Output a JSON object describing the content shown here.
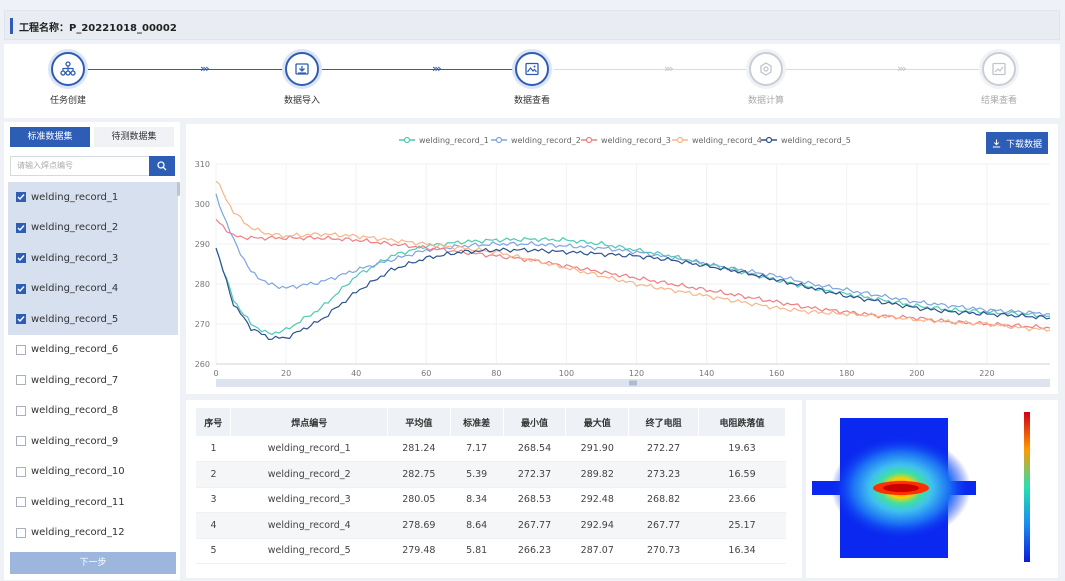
{
  "project": {
    "title": "工程名称：P_20221018_00002"
  },
  "steps": [
    {
      "label": "任务创建",
      "state": "done",
      "icon": "network-icon"
    },
    {
      "label": "数据导入",
      "state": "done",
      "icon": "import-icon"
    },
    {
      "label": "数据查看",
      "state": "active",
      "icon": "image-icon"
    },
    {
      "label": "数据计算",
      "state": "inactive",
      "icon": "compute-icon"
    },
    {
      "label": "结果查看",
      "state": "inactive",
      "icon": "result-icon"
    }
  ],
  "sidebar": {
    "tab_active": "标准数据集",
    "tab_other": "待测数据集",
    "search_placeholder": "请输入焊点编号",
    "items": [
      {
        "label": "welding_record_1",
        "checked": true
      },
      {
        "label": "welding_record_2",
        "checked": true
      },
      {
        "label": "welding_record_3",
        "checked": true
      },
      {
        "label": "welding_record_4",
        "checked": true
      },
      {
        "label": "welding_record_5",
        "checked": true
      },
      {
        "label": "welding_record_6",
        "checked": false
      },
      {
        "label": "welding_record_7",
        "checked": false
      },
      {
        "label": "welding_record_8",
        "checked": false
      },
      {
        "label": "welding_record_9",
        "checked": false
      },
      {
        "label": "welding_record_10",
        "checked": false
      },
      {
        "label": "welding_record_11",
        "checked": false
      },
      {
        "label": "welding_record_12",
        "checked": false
      }
    ],
    "next_label": "下一步"
  },
  "download_label": "下载数据",
  "chart_data": {
    "type": "line",
    "xlim": [
      0,
      238
    ],
    "ylim": [
      260,
      310
    ],
    "xticks": [
      0,
      20,
      40,
      60,
      80,
      100,
      120,
      140,
      160,
      180,
      200,
      220
    ],
    "yticks": [
      260,
      270,
      280,
      290,
      300,
      310
    ],
    "legend_position": "top-center",
    "series": [
      {
        "name": "welding_record_1",
        "color": "#4fc9b0",
        "points": [
          [
            0,
            289
          ],
          [
            5,
            276
          ],
          [
            10,
            270
          ],
          [
            15,
            267.5
          ],
          [
            20,
            268.5
          ],
          [
            30,
            274
          ],
          [
            40,
            282
          ],
          [
            50,
            287
          ],
          [
            60,
            289.5
          ],
          [
            70,
            290.5
          ],
          [
            80,
            291
          ],
          [
            90,
            291.2
          ],
          [
            100,
            291
          ],
          [
            110,
            290
          ],
          [
            120,
            288.5
          ],
          [
            130,
            287
          ],
          [
            140,
            285
          ],
          [
            150,
            283
          ],
          [
            160,
            281
          ],
          [
            170,
            279
          ],
          [
            180,
            277.5
          ],
          [
            190,
            276
          ],
          [
            200,
            274.5
          ],
          [
            210,
            273.5
          ],
          [
            220,
            273
          ],
          [
            230,
            272.5
          ],
          [
            238,
            272
          ]
        ]
      },
      {
        "name": "welding_record_2",
        "color": "#7fa4e0",
        "points": [
          [
            0,
            302
          ],
          [
            5,
            291
          ],
          [
            10,
            283
          ],
          [
            15,
            280
          ],
          [
            20,
            279
          ],
          [
            30,
            280.5
          ],
          [
            40,
            283.5
          ],
          [
            50,
            286
          ],
          [
            60,
            288.5
          ],
          [
            70,
            289.5
          ],
          [
            80,
            290
          ],
          [
            90,
            290
          ],
          [
            100,
            289.5
          ],
          [
            110,
            289
          ],
          [
            120,
            288
          ],
          [
            130,
            286.5
          ],
          [
            140,
            285
          ],
          [
            150,
            283.5
          ],
          [
            160,
            282
          ],
          [
            170,
            280
          ],
          [
            180,
            278.5
          ],
          [
            190,
            277
          ],
          [
            200,
            275.5
          ],
          [
            210,
            274.5
          ],
          [
            220,
            273.5
          ],
          [
            230,
            273
          ],
          [
            238,
            272.5
          ]
        ]
      },
      {
        "name": "welding_record_3",
        "color": "#ee7f83",
        "points": [
          [
            0,
            296
          ],
          [
            5,
            292
          ],
          [
            10,
            291.5
          ],
          [
            20,
            291.5
          ],
          [
            30,
            291.5
          ],
          [
            40,
            291
          ],
          [
            50,
            290
          ],
          [
            60,
            289
          ],
          [
            70,
            288
          ],
          [
            80,
            287
          ],
          [
            90,
            286
          ],
          [
            100,
            284.5
          ],
          [
            110,
            283
          ],
          [
            120,
            281.5
          ],
          [
            130,
            280
          ],
          [
            140,
            278.5
          ],
          [
            150,
            277
          ],
          [
            160,
            275.5
          ],
          [
            170,
            274
          ],
          [
            180,
            273
          ],
          [
            190,
            272
          ],
          [
            200,
            271.5
          ],
          [
            210,
            270.5
          ],
          [
            220,
            270
          ],
          [
            230,
            269.5
          ],
          [
            238,
            269
          ]
        ]
      },
      {
        "name": "welding_record_4",
        "color": "#f6b58a",
        "points": [
          [
            0,
            306
          ],
          [
            5,
            298
          ],
          [
            10,
            294
          ],
          [
            15,
            292.5
          ],
          [
            20,
            292
          ],
          [
            30,
            292.5
          ],
          [
            40,
            292
          ],
          [
            50,
            291
          ],
          [
            60,
            290
          ],
          [
            70,
            289
          ],
          [
            80,
            288
          ],
          [
            90,
            286
          ],
          [
            100,
            284
          ],
          [
            110,
            282
          ],
          [
            120,
            280
          ],
          [
            130,
            278.5
          ],
          [
            140,
            277
          ],
          [
            150,
            275.5
          ],
          [
            160,
            274
          ],
          [
            170,
            273
          ],
          [
            180,
            272.5
          ],
          [
            190,
            272
          ],
          [
            200,
            271
          ],
          [
            210,
            270.5
          ],
          [
            220,
            270
          ],
          [
            230,
            269
          ],
          [
            238,
            268.5
          ]
        ]
      },
      {
        "name": "welding_record_5",
        "color": "#2e528f",
        "points": [
          [
            0,
            289
          ],
          [
            5,
            275
          ],
          [
            10,
            269
          ],
          [
            15,
            266.5
          ],
          [
            20,
            266.5
          ],
          [
            30,
            271
          ],
          [
            40,
            278
          ],
          [
            50,
            283.5
          ],
          [
            60,
            286.5
          ],
          [
            70,
            288
          ],
          [
            80,
            288.5
          ],
          [
            90,
            288.5
          ],
          [
            100,
            288
          ],
          [
            110,
            287.5
          ],
          [
            120,
            287
          ],
          [
            130,
            286
          ],
          [
            140,
            284.5
          ],
          [
            150,
            283
          ],
          [
            160,
            281
          ],
          [
            170,
            279
          ],
          [
            180,
            277
          ],
          [
            190,
            275.5
          ],
          [
            200,
            274
          ],
          [
            210,
            273
          ],
          [
            220,
            272.5
          ],
          [
            230,
            272
          ],
          [
            238,
            271.5
          ]
        ]
      }
    ]
  },
  "table": {
    "headers": [
      "序号",
      "焊点编号",
      "平均值",
      "标准差",
      "最小值",
      "最大值",
      "终了电阻",
      "电阻跌落值"
    ],
    "rows": [
      [
        "1",
        "welding_record_1",
        "281.24",
        "7.17",
        "268.54",
        "291.90",
        "272.27",
        "19.63"
      ],
      [
        "2",
        "welding_record_2",
        "282.75",
        "5.39",
        "272.37",
        "289.82",
        "273.23",
        "16.59"
      ],
      [
        "3",
        "welding_record_3",
        "280.05",
        "8.34",
        "268.53",
        "292.48",
        "268.82",
        "23.66"
      ],
      [
        "4",
        "welding_record_4",
        "278.69",
        "8.64",
        "267.77",
        "292.94",
        "267.77",
        "25.17"
      ],
      [
        "5",
        "welding_record_5",
        "279.48",
        "5.81",
        "266.23",
        "287.07",
        "270.73",
        "16.34"
      ]
    ]
  }
}
